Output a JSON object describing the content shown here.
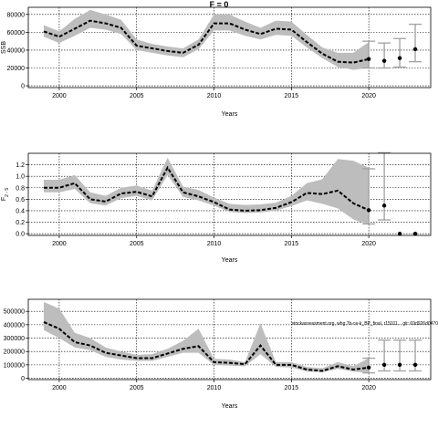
{
  "figure": {
    "title": "F = 0",
    "colors": {
      "band": "#bdbdbd",
      "line": "#000000",
      "whisker": "#a0a0a0",
      "grid": "#000000"
    }
  },
  "chart_data": [
    {
      "type": "line",
      "xlabel": "Years",
      "ylabel": "SSB",
      "xlim": [
        1998,
        2024
      ],
      "ylim": [
        -2000,
        88000
      ],
      "xticks": [
        2000,
        2005,
        2010,
        2015,
        2020
      ],
      "xtick_labels": [
        "2000",
        "2005",
        "2010",
        "2015",
        "2020"
      ],
      "yticks": [
        0,
        20000,
        40000,
        60000,
        80000
      ],
      "ytick_labels": [
        "0",
        "20000",
        "40000",
        "60000",
        "80000"
      ],
      "grid": true,
      "annotation": "",
      "series": [
        {
          "x": [
            1999,
            2000,
            2001,
            2002,
            2003,
            2004,
            2005,
            2006,
            2007,
            2008,
            2009,
            2010,
            2011,
            2012,
            2013,
            2014,
            2015,
            2016,
            2017,
            2018,
            2019,
            2020
          ],
          "median": [
            61000,
            55000,
            64000,
            73000,
            70000,
            65000,
            45000,
            42000,
            39000,
            37000,
            46000,
            70000,
            70000,
            63000,
            58000,
            64000,
            63000,
            49000,
            36000,
            27000,
            26000,
            30000
          ],
          "lower": [
            55000,
            48000,
            56000,
            65000,
            63000,
            58000,
            40000,
            37000,
            34000,
            32000,
            41000,
            62000,
            62000,
            56000,
            52000,
            57000,
            56000,
            43000,
            31000,
            21000,
            18000,
            20000
          ],
          "upper": [
            68000,
            61000,
            75000,
            85000,
            80000,
            74000,
            52000,
            47000,
            44000,
            42000,
            52000,
            80000,
            80000,
            72000,
            65000,
            73000,
            72000,
            57000,
            43000,
            37000,
            37000,
            49000
          ]
        }
      ],
      "projections": [
        {
          "x": 2020,
          "value": 30000,
          "lower": 20000,
          "upper": 50000
        },
        {
          "x": 2021,
          "value": 28000,
          "lower": 20000,
          "upper": 48000
        },
        {
          "x": 2022,
          "value": 31000,
          "lower": 21000,
          "upper": 53000
        },
        {
          "x": 2023,
          "value": 41000,
          "lower": 27000,
          "upper": 69000
        }
      ]
    },
    {
      "type": "line",
      "xlabel": "Years",
      "ylabel": "F",
      "ylabel_sub": "2 - 5",
      "xlim": [
        1998,
        2024
      ],
      "ylim": [
        -0.03,
        1.4
      ],
      "xticks": [
        2000,
        2005,
        2010,
        2015,
        2020
      ],
      "xtick_labels": [
        "2000",
        "2005",
        "2010",
        "2015",
        "2020"
      ],
      "yticks": [
        0.0,
        0.2,
        0.4,
        0.6,
        0.8,
        1.0,
        1.2
      ],
      "ytick_labels": [
        "0.0",
        "0.2",
        "0.4",
        "0.6",
        "0.8",
        "1.0",
        "1.2"
      ],
      "grid": true,
      "annotation": "",
      "series": [
        {
          "x": [
            1999,
            2000,
            2001,
            2002,
            2003,
            2004,
            2005,
            2006,
            2007,
            2008,
            2009,
            2010,
            2011,
            2012,
            2013,
            2014,
            2015,
            2016,
            2017,
            2018,
            2019,
            2020
          ],
          "median": [
            0.8,
            0.8,
            0.88,
            0.6,
            0.56,
            0.7,
            0.73,
            0.65,
            1.15,
            0.72,
            0.65,
            0.55,
            0.42,
            0.4,
            0.41,
            0.45,
            0.55,
            0.71,
            0.69,
            0.75,
            0.53,
            0.41
          ],
          "lower": [
            0.72,
            0.72,
            0.78,
            0.53,
            0.49,
            0.62,
            0.66,
            0.58,
            1.02,
            0.64,
            0.58,
            0.49,
            0.38,
            0.36,
            0.37,
            0.4,
            0.48,
            0.58,
            0.52,
            0.44,
            0.25,
            0.15
          ],
          "upper": [
            0.94,
            0.94,
            1.02,
            0.72,
            0.66,
            0.8,
            0.84,
            0.75,
            1.32,
            0.82,
            0.76,
            0.63,
            0.52,
            0.5,
            0.51,
            0.54,
            0.66,
            0.88,
            0.95,
            1.3,
            1.27,
            1.15
          ]
        }
      ],
      "projections": [
        {
          "x": 2020,
          "value": 0.41,
          "lower": 0.17,
          "upper": 1.13
        },
        {
          "x": 2021,
          "value": 0.49,
          "lower": 0.24,
          "upper": 1.41
        },
        {
          "x": 2022,
          "value": 0.0
        },
        {
          "x": 2023,
          "value": 0.0
        }
      ]
    },
    {
      "type": "line",
      "xlabel": "Years",
      "ylabel": "",
      "xlim": [
        1998,
        2024
      ],
      "ylim": [
        -10000,
        590000
      ],
      "xticks": [
        2000,
        2005,
        2010,
        2015,
        2020
      ],
      "xtick_labels": [
        "2000",
        "2005",
        "2010",
        "2015",
        "2020"
      ],
      "yticks": [
        0,
        100000,
        200000,
        300000,
        400000,
        500000
      ],
      "ytick_labels": [
        "0",
        "100000",
        "200000",
        "300000",
        "400000",
        "500000"
      ],
      "grid": true,
      "annotation": "stockassessment.org, whg.7b-ce-k_BP_final, r15011... git: 69d926d0470",
      "series": [
        {
          "x": [
            1999,
            2000,
            2001,
            2002,
            2003,
            2004,
            2005,
            2006,
            2007,
            2008,
            2009,
            2010,
            2011,
            2012,
            2013,
            2014,
            2015,
            2016,
            2017,
            2018,
            2019,
            2020
          ],
          "median": [
            420000,
            370000,
            270000,
            245000,
            190000,
            170000,
            150000,
            150000,
            185000,
            220000,
            240000,
            120000,
            115000,
            105000,
            245000,
            100000,
            100000,
            65000,
            55000,
            90000,
            65000,
            80000
          ],
          "lower": [
            360000,
            300000,
            230000,
            210000,
            160000,
            140000,
            130000,
            130000,
            160000,
            190000,
            190000,
            100000,
            95000,
            90000,
            180000,
            85000,
            80000,
            50000,
            45000,
            70000,
            50000,
            40000
          ],
          "upper": [
            570000,
            520000,
            340000,
            300000,
            230000,
            200000,
            175000,
            180000,
            220000,
            280000,
            370000,
            145000,
            140000,
            120000,
            410000,
            120000,
            120000,
            85000,
            75000,
            120000,
            90000,
            150000
          ]
        }
      ],
      "projections": [
        {
          "x": 2020,
          "value": 80000,
          "lower": 40000,
          "upper": 150000
        },
        {
          "x": 2021,
          "value": 100000,
          "lower": 55000,
          "upper": 285000
        },
        {
          "x": 2022,
          "value": 100000,
          "lower": 55000,
          "upper": 285000
        },
        {
          "x": 2023,
          "value": 100000,
          "lower": 55000,
          "upper": 285000
        }
      ]
    }
  ]
}
